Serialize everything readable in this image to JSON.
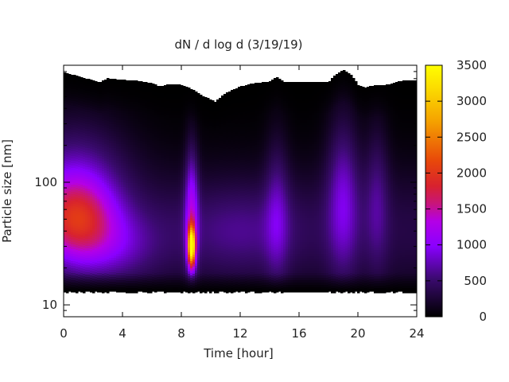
{
  "chart_data": {
    "type": "heatmap",
    "title": "dN / d log d (3/19/19)",
    "xlabel": "Time [hour]",
    "ylabel": "Particle size [nm]",
    "xlim": [
      0,
      24
    ],
    "ylim": [
      8,
      900
    ],
    "yscale": "log",
    "x_ticks": [
      "0",
      "4",
      "8",
      "12",
      "16",
      "20",
      "24"
    ],
    "y_ticks": [
      "10",
      "100"
    ],
    "colorbar": {
      "range": [
        0,
        3500
      ],
      "ticks": [
        "0",
        "500",
        "1000",
        "1500",
        "2000",
        "2500",
        "3000",
        "3500"
      ],
      "colormap": "gnuplot"
    },
    "lower_size_limit_nm": 13,
    "upper_size_limit": {
      "hours": [
        0,
        1.5,
        2.5,
        3,
        4,
        5,
        6,
        6.5,
        7,
        8,
        8.5,
        9.5,
        10.3,
        11,
        12,
        13,
        14,
        14.5,
        15,
        16,
        17,
        18,
        18.5,
        19,
        19.5,
        20,
        20.5,
        21,
        22,
        23,
        24
      ],
      "nm": [
        780,
        700,
        650,
        700,
        680,
        670,
        640,
        600,
        620,
        620,
        590,
        500,
        450,
        530,
        600,
        640,
        660,
        720,
        650,
        650,
        650,
        650,
        750,
        820,
        760,
        620,
        590,
        610,
        620,
        670,
        670
      ]
    },
    "features": [
      {
        "time": 0.8,
        "size_nm": 50,
        "value": 1400,
        "width_h": 2.6,
        "width_decades": 0.34
      },
      {
        "time": 0.8,
        "size_nm": 130,
        "value": 500,
        "width_h": 3.5,
        "width_decades": 0.45
      },
      {
        "time": 3.5,
        "size_nm": 30,
        "value": 450,
        "width_h": 3.0,
        "width_decades": 0.3
      },
      {
        "time": 8.7,
        "size_nm": 30,
        "value": 3000,
        "width_h": 0.25,
        "width_decades": 0.16
      },
      {
        "time": 8.7,
        "size_nm": 60,
        "value": 900,
        "width_h": 0.45,
        "width_decades": 0.5
      },
      {
        "time": 14.5,
        "size_nm": 60,
        "value": 450,
        "width_h": 0.8,
        "width_decades": 0.6
      },
      {
        "time": 19.0,
        "size_nm": 80,
        "value": 650,
        "width_h": 1.1,
        "width_decades": 0.65
      },
      {
        "time": 21.3,
        "size_nm": 80,
        "value": 400,
        "width_h": 0.8,
        "width_decades": 0.6
      },
      {
        "time": 12.0,
        "size_nm": 40,
        "value": 300,
        "width_h": 4.0,
        "width_decades": 0.35
      }
    ],
    "background_value": 330
  }
}
